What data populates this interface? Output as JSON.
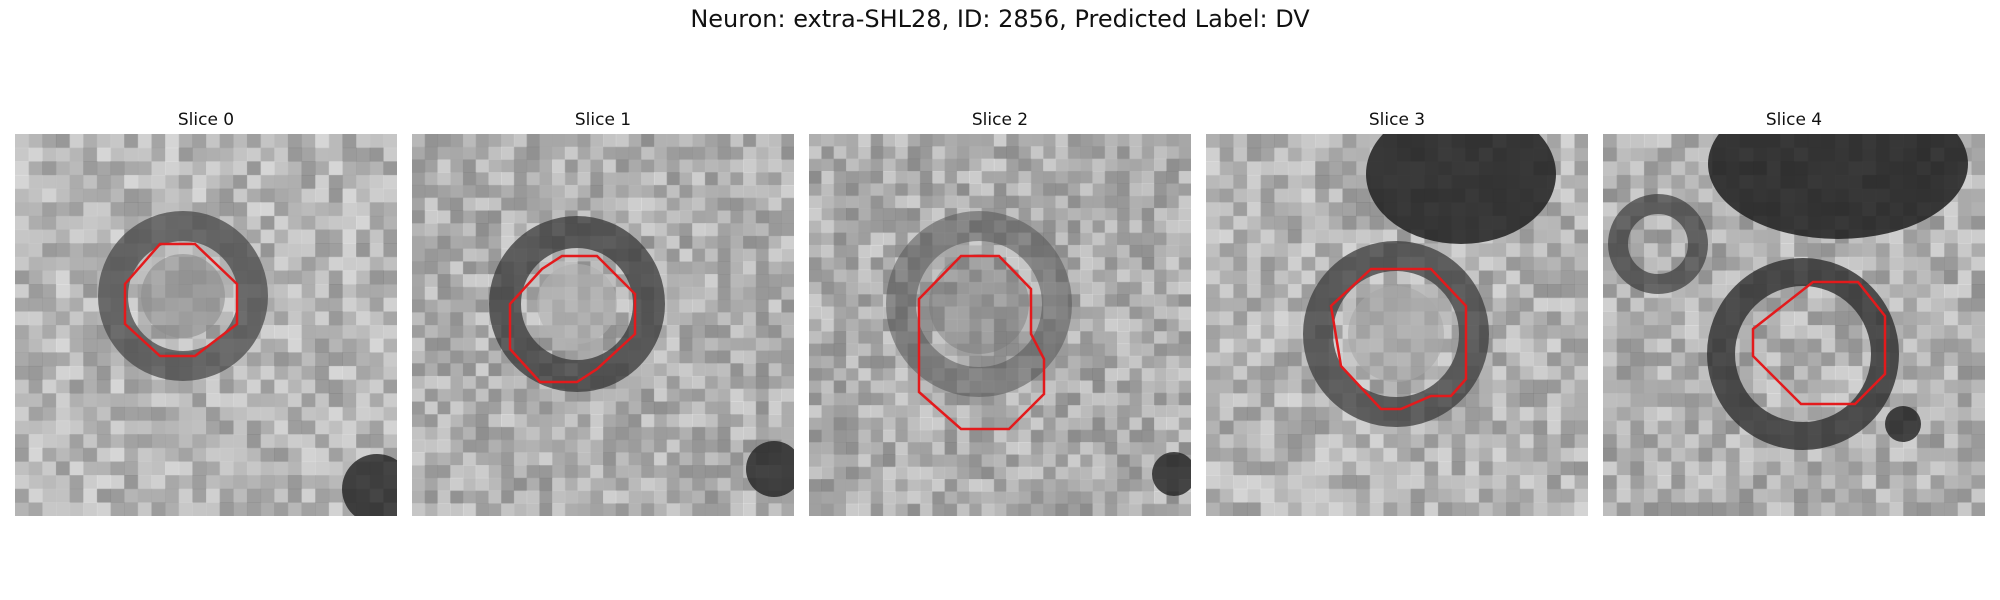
{
  "figure": {
    "title": "Neuron: extra-SHL28, ID: 2856, Predicted Label: DV"
  },
  "panels": [
    {
      "title": "Slice 0",
      "contour_color": "#e31a1c"
    },
    {
      "title": "Slice 1",
      "contour_color": "#e31a1c"
    },
    {
      "title": "Slice 2",
      "contour_color": "#e31a1c"
    },
    {
      "title": "Slice 3",
      "contour_color": "#e31a1c"
    },
    {
      "title": "Slice 4",
      "contour_color": "#e31a1c"
    }
  ]
}
